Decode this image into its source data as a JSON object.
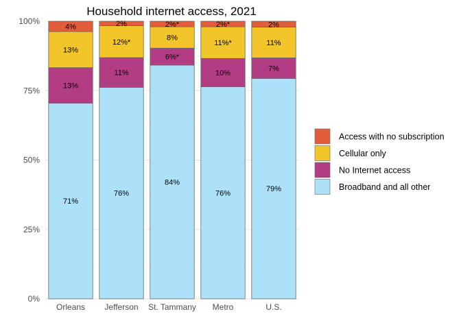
{
  "chart_data": {
    "type": "bar",
    "stacked": true,
    "title": "Household internet access, 2021",
    "xlabel": "",
    "ylabel": "",
    "ylim": [
      0,
      100
    ],
    "yticks": [
      0,
      25,
      50,
      75,
      100
    ],
    "ytick_labels": [
      "0%",
      "25%",
      "50%",
      "75%",
      "100%"
    ],
    "grid": true,
    "legend_position": "right",
    "categories": [
      "Orleans",
      "Jefferson",
      "St. Tammany",
      "Metro",
      "U.S."
    ],
    "series": [
      {
        "name": "Broadband and all other",
        "color": "#ade1fa",
        "values": [
          70.5,
          76.2,
          84.2,
          76.4,
          79.4
        ],
        "labels": [
          "71%",
          "76%",
          "84%",
          "76%",
          "79%"
        ]
      },
      {
        "name": "No Internet access",
        "color": "#b33d84",
        "values": [
          12.8,
          10.7,
          6.1,
          10.2,
          7.4
        ],
        "labels": [
          "13%",
          "11%",
          "6%*",
          "10%",
          "7%"
        ]
      },
      {
        "name": "Cellular only",
        "color": "#f2c52a",
        "values": [
          13.0,
          11.5,
          7.7,
          11.4,
          11.1
        ],
        "labels": [
          "13%",
          "12%*",
          "8%",
          "11%*",
          "11%"
        ]
      },
      {
        "name": "Access with no subscription",
        "color": "#e55c3c",
        "values": [
          3.7,
          1.6,
          2.0,
          2.0,
          2.1
        ],
        "labels": [
          "4%",
          "2%",
          "2%*",
          "2%*",
          "2%"
        ]
      }
    ]
  }
}
